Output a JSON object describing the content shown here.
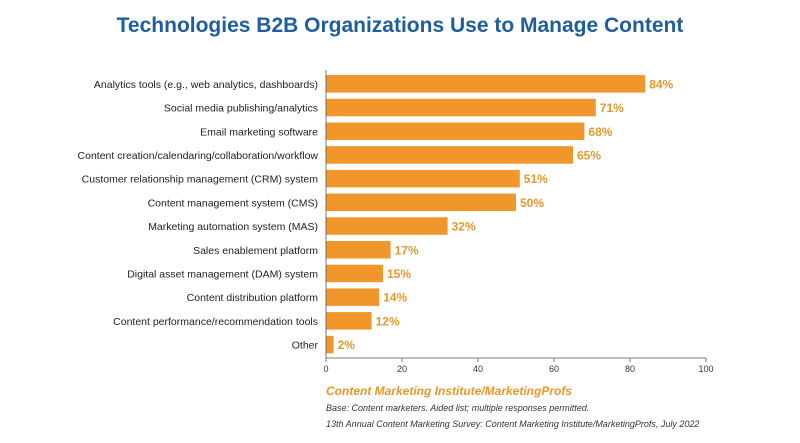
{
  "colors": {
    "bar": "#f0962a",
    "value_label": "#e8972b",
    "title": "#1f5e9e",
    "axis": "#555555"
  },
  "chart_data": {
    "type": "bar",
    "orientation": "horizontal",
    "title": "Technologies B2B Organizations Use to Manage Content",
    "categories": [
      "Analytics tools (e.g., web analytics, dashboards)",
      "Social media publishing/analytics",
      "Email marketing software",
      "Content creation/calendaring/collaboration/workflow",
      "Customer relationship management (CRM) system",
      "Content management system (CMS)",
      "Marketing automation system (MAS)",
      "Sales enablement platform",
      "Digital asset management (DAM) system",
      "Content distribution platform",
      "Content performance/recommendation tools",
      "Other"
    ],
    "values": [
      84,
      71,
      68,
      65,
      51,
      50,
      32,
      17,
      15,
      14,
      12,
      2
    ],
    "value_labels": [
      "84%",
      "71%",
      "68%",
      "65%",
      "51%",
      "50%",
      "32%",
      "17%",
      "15%",
      "14%",
      "12%",
      "2%"
    ],
    "xlim": [
      0,
      100
    ],
    "xticks": [
      0,
      20,
      40,
      60,
      80,
      100
    ],
    "xtick_labels": [
      "0",
      "20",
      "40",
      "60",
      "80",
      "100"
    ],
    "grid": false,
    "legend": "none"
  },
  "source": {
    "title": "Content Marketing Institute/MarketingProfs",
    "base": "Base: Content marketers. Aided list; multiple responses permitted.",
    "survey": "13th Annual Content Marketing Survey: Content Marketing Institute/MarketingProfs, July 2022"
  }
}
